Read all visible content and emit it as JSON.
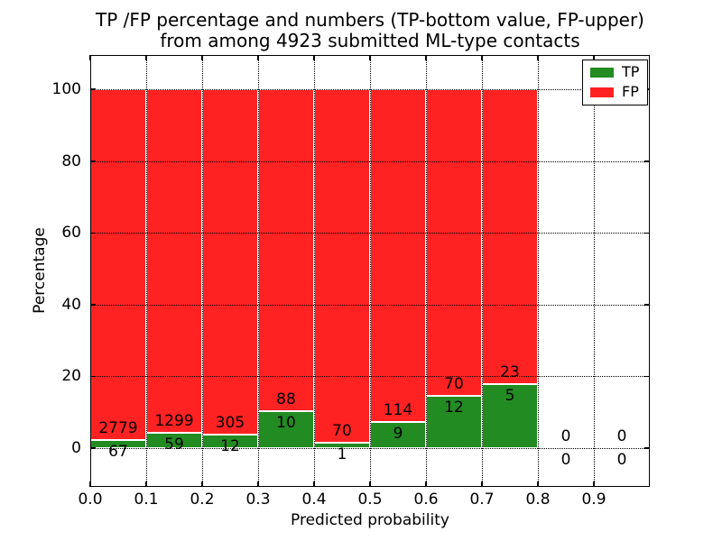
{
  "title": {
    "line1": "TP /FP percentage and numbers (TP-bottom value, FP-upper)",
    "line2": "from among 4923 submitted ML-type contacts"
  },
  "chart_data": {
    "type": "bar",
    "stacked": true,
    "normalized_to_percent": true,
    "title": "TP /FP percentage and numbers (TP-bottom value, FP-upper)\nfrom among 4923 submitted ML-type contacts",
    "xlabel": "Predicted probability",
    "ylabel": "Percentage",
    "total_submitted": 4923,
    "bin_width": 0.1,
    "bin_starts": [
      0.0,
      0.1,
      0.2,
      0.3,
      0.4,
      0.5,
      0.6,
      0.7,
      0.8,
      0.9
    ],
    "series": [
      {
        "name": "TP",
        "color": "#228b22",
        "counts": [
          67,
          59,
          12,
          10,
          1,
          9,
          12,
          5,
          0,
          0
        ]
      },
      {
        "name": "FP",
        "color": "#ff2222",
        "counts": [
          2779,
          1299,
          305,
          88,
          70,
          114,
          70,
          23,
          0,
          0
        ]
      }
    ],
    "tp_percent_per_bin": [
      2.35,
      4.34,
      3.79,
      10.2,
      1.41,
      7.32,
      14.63,
      17.86,
      0,
      0
    ],
    "xticks": [
      0.0,
      0.1,
      0.2,
      0.3,
      0.4,
      0.5,
      0.6,
      0.7,
      0.8,
      0.9
    ],
    "xtick_labels": [
      "0.0",
      "0.1",
      "0.2",
      "0.3",
      "0.4",
      "0.5",
      "0.6",
      "0.7",
      "0.8",
      "0.9"
    ],
    "yticks": [
      0,
      20,
      40,
      60,
      80,
      100
    ],
    "ytick_labels": [
      "0",
      "20",
      "40",
      "60",
      "80",
      "100"
    ],
    "xlim": [
      0.0,
      1.0
    ],
    "ylim": [
      -10.8,
      109.6
    ],
    "grid": {
      "style": "dotted",
      "color": "#000000"
    },
    "legend": {
      "position": "upper right",
      "entries": [
        {
          "label": "TP",
          "color": "#228b22"
        },
        {
          "label": "FP",
          "color": "#ff2222"
        }
      ]
    }
  }
}
